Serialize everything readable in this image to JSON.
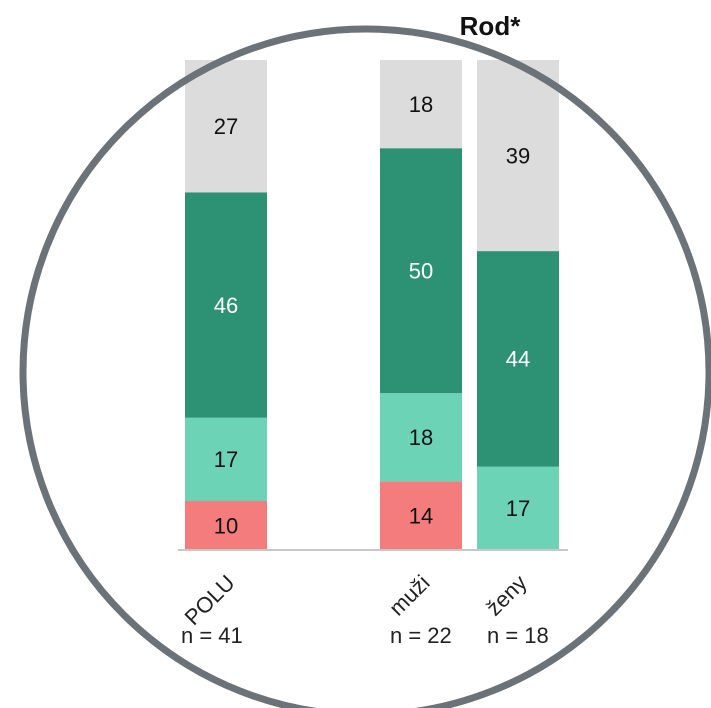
{
  "chart_data": {
    "type": "stacked_bar",
    "title": "Rod*",
    "categories": [
      "POLU",
      "muži",
      "ženy"
    ],
    "n_labels": [
      "n = 41",
      "n = 22",
      "n = 18"
    ],
    "series": [
      {
        "color": "#f47c7c",
        "values": [
          10,
          14,
          null
        ]
      },
      {
        "color": "#6cd3b6",
        "values": [
          17,
          18,
          17
        ]
      },
      {
        "color": "#2d9273",
        "values": [
          46,
          50,
          44
        ]
      },
      {
        "color": "#dcdcdc",
        "values": [
          27,
          18,
          39
        ]
      }
    ],
    "ylim": [
      0,
      100
    ]
  }
}
